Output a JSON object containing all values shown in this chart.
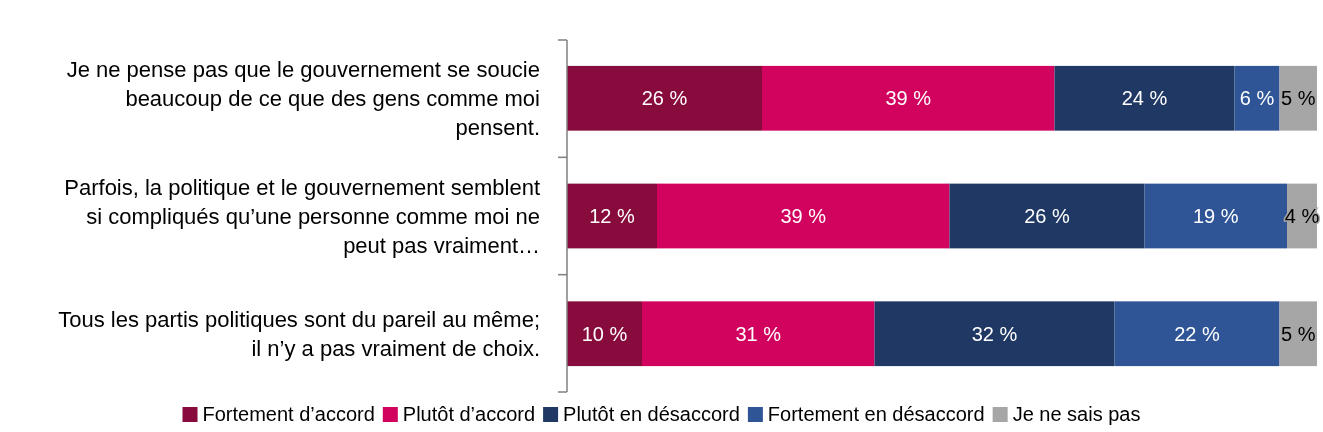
{
  "chart_data": {
    "type": "bar",
    "orientation": "horizontal",
    "stacked": true,
    "xlim": [
      0,
      100
    ],
    "tick_labels": "y",
    "legend": "bottom",
    "categories": [
      "Je ne pense pas que le gouvernement se soucie beaucoup de ce que des gens comme moi pensent.",
      "Parfois, la politique et le gouvernement semblent si compliqués qu’une personne comme moi ne peut pas vraiment…",
      "Tous les partis politiques sont du pareil au même; il n’y a pas vraiment de choix."
    ],
    "series": [
      {
        "name": "Fortement d’accord",
        "color": "#870b3c",
        "values": [
          26,
          12,
          10
        ],
        "value_labels": [
          "26 %",
          "12 %",
          "10 %"
        ]
      },
      {
        "name": "Plutôt d’accord",
        "color": "#d1035e",
        "values": [
          39,
          39,
          31
        ],
        "value_labels": [
          "39 %",
          "39 %",
          "31 %"
        ]
      },
      {
        "name": "Plutôt en désaccord",
        "color": "#203864",
        "values": [
          24,
          26,
          32
        ],
        "value_labels": [
          "24 %",
          "26 %",
          "32 %"
        ]
      },
      {
        "name": "Fortement en désaccord",
        "color": "#2f5597",
        "values": [
          6,
          19,
          22
        ],
        "value_labels": [
          "6 %",
          "19 %",
          "22 %"
        ]
      },
      {
        "name": "Je ne sais pas",
        "color": "#a6a6a6",
        "values": [
          5,
          4,
          5
        ],
        "value_labels": [
          "5 %",
          "4 %",
          "5 %"
        ]
      }
    ]
  }
}
